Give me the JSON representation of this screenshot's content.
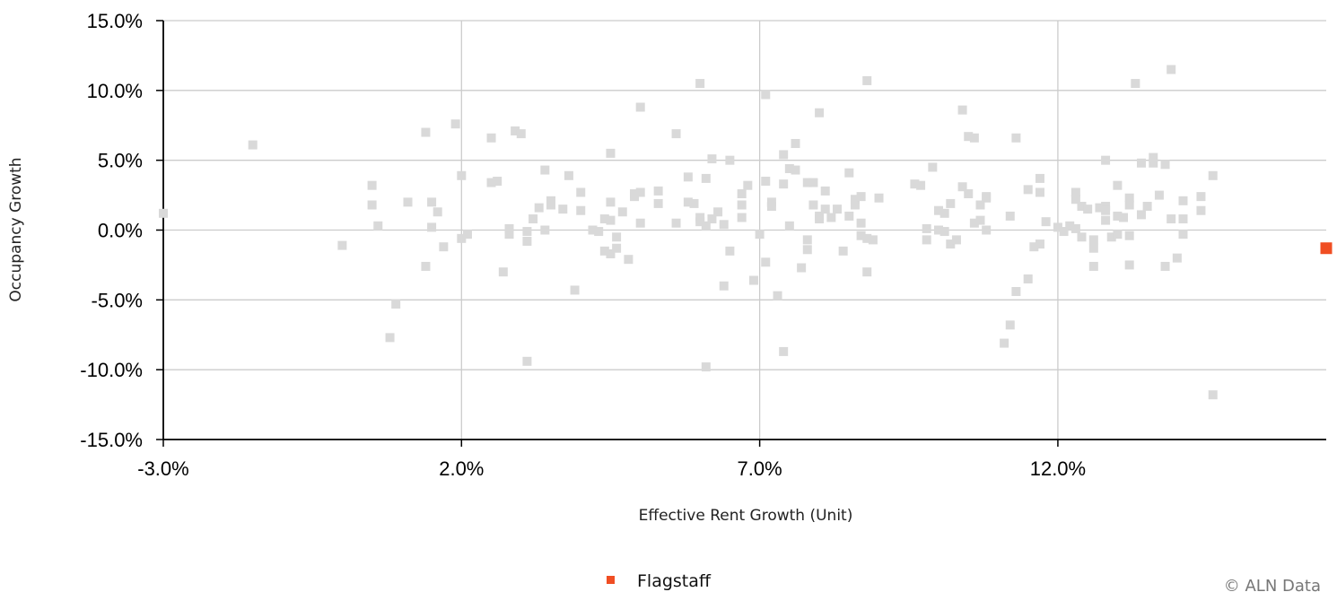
{
  "chart_data": {
    "type": "scatter",
    "xlabel": "Effective Rent Growth (Unit)",
    "ylabel": "Occupancy Growth",
    "xlim": [
      -3.0,
      16.5
    ],
    "ylim": [
      -15.0,
      15.0
    ],
    "x_ticks": [
      -3.0,
      2.0,
      7.0,
      12.0
    ],
    "x_tick_labels": [
      "-3.0%",
      "2.0%",
      "7.0%",
      "12.0%"
    ],
    "y_ticks": [
      15.0,
      10.0,
      5.0,
      0.0,
      -5.0,
      -10.0,
      -15.0
    ],
    "y_tick_labels": [
      "15.0%",
      "10.0%",
      "5.0%",
      "0.0%",
      "-5.0%",
      "-10.0%",
      "-15.0%"
    ],
    "grid": true,
    "legend": {
      "position": "bottom-center",
      "entries": [
        {
          "name": "Flagstaff",
          "color": "#f04e23"
        }
      ]
    },
    "credit": "© ALN Data",
    "colors": {
      "other": "#d9d9d9",
      "highlight": "#f04e23",
      "grid": "#cccccc",
      "axis": "#000000"
    },
    "series": [
      {
        "name": "",
        "color": "#d9d9d9",
        "points": [
          [
            -3.0,
            1.2
          ],
          [
            -1.5,
            6.1
          ],
          [
            0.0,
            -1.1
          ],
          [
            0.5,
            3.2
          ],
          [
            0.5,
            1.8
          ],
          [
            0.6,
            0.3
          ],
          [
            0.8,
            -7.7
          ],
          [
            0.9,
            -5.3
          ],
          [
            1.1,
            2.0
          ],
          [
            1.4,
            7.0
          ],
          [
            1.4,
            -2.6
          ],
          [
            1.5,
            2.0
          ],
          [
            1.5,
            0.2
          ],
          [
            1.6,
            1.3
          ],
          [
            1.7,
            -1.2
          ],
          [
            1.9,
            7.6
          ],
          [
            2.0,
            3.9
          ],
          [
            2.0,
            -0.6
          ],
          [
            2.1,
            -0.3
          ],
          [
            2.5,
            6.6
          ],
          [
            2.5,
            3.4
          ],
          [
            2.6,
            3.5
          ],
          [
            2.7,
            -3.0
          ],
          [
            2.8,
            -0.3
          ],
          [
            2.8,
            0.1
          ],
          [
            2.9,
            7.1
          ],
          [
            3.0,
            6.9
          ],
          [
            3.1,
            -9.4
          ],
          [
            3.1,
            -0.1
          ],
          [
            3.1,
            -0.8
          ],
          [
            3.2,
            0.8
          ],
          [
            3.3,
            1.6
          ],
          [
            3.4,
            4.3
          ],
          [
            3.4,
            0.0
          ],
          [
            3.5,
            1.8
          ],
          [
            3.5,
            2.1
          ],
          [
            3.7,
            1.5
          ],
          [
            3.8,
            3.9
          ],
          [
            3.9,
            -4.3
          ],
          [
            4.0,
            2.7
          ],
          [
            4.0,
            1.4
          ],
          [
            4.2,
            0.0
          ],
          [
            4.3,
            -0.1
          ],
          [
            4.4,
            0.8
          ],
          [
            4.4,
            -1.5
          ],
          [
            4.5,
            0.7
          ],
          [
            4.5,
            5.5
          ],
          [
            4.5,
            2.0
          ],
          [
            4.5,
            -1.7
          ],
          [
            4.6,
            -1.3
          ],
          [
            4.6,
            -0.5
          ],
          [
            4.7,
            1.3
          ],
          [
            4.8,
            -2.1
          ],
          [
            4.9,
            2.4
          ],
          [
            4.9,
            2.6
          ],
          [
            5.0,
            8.8
          ],
          [
            5.0,
            2.7
          ],
          [
            5.0,
            0.5
          ],
          [
            5.3,
            2.8
          ],
          [
            5.3,
            1.9
          ],
          [
            5.6,
            6.9
          ],
          [
            5.6,
            0.5
          ],
          [
            5.8,
            3.8
          ],
          [
            5.8,
            2.0
          ],
          [
            5.9,
            1.9
          ],
          [
            6.0,
            10.5
          ],
          [
            6.0,
            0.9
          ],
          [
            6.0,
            0.6
          ],
          [
            6.1,
            3.7
          ],
          [
            6.1,
            0.3
          ],
          [
            6.1,
            -9.8
          ],
          [
            6.2,
            5.1
          ],
          [
            6.2,
            0.8
          ],
          [
            6.3,
            1.3
          ],
          [
            6.4,
            -4.0
          ],
          [
            6.4,
            0.4
          ],
          [
            6.5,
            5.0
          ],
          [
            6.5,
            -1.5
          ],
          [
            6.7,
            2.6
          ],
          [
            6.7,
            1.8
          ],
          [
            6.7,
            0.9
          ],
          [
            6.8,
            3.2
          ],
          [
            6.9,
            -3.6
          ],
          [
            7.0,
            -0.3
          ],
          [
            7.1,
            9.7
          ],
          [
            7.1,
            3.5
          ],
          [
            7.1,
            -2.3
          ],
          [
            7.2,
            2.0
          ],
          [
            7.2,
            1.7
          ],
          [
            7.3,
            -4.7
          ],
          [
            7.4,
            -8.7
          ],
          [
            7.4,
            5.4
          ],
          [
            7.4,
            3.3
          ],
          [
            7.5,
            4.4
          ],
          [
            7.5,
            0.3
          ],
          [
            7.6,
            6.2
          ],
          [
            7.6,
            4.3
          ],
          [
            7.7,
            -2.7
          ],
          [
            7.8,
            3.4
          ],
          [
            7.8,
            -0.7
          ],
          [
            7.8,
            -1.4
          ],
          [
            7.9,
            3.4
          ],
          [
            7.9,
            1.8
          ],
          [
            8.0,
            8.4
          ],
          [
            8.0,
            1.0
          ],
          [
            8.0,
            0.8
          ],
          [
            8.1,
            2.8
          ],
          [
            8.1,
            1.5
          ],
          [
            8.2,
            0.9
          ],
          [
            8.3,
            1.5
          ],
          [
            8.4,
            -1.5
          ],
          [
            8.5,
            4.1
          ],
          [
            8.5,
            1.0
          ],
          [
            8.6,
            2.2
          ],
          [
            8.6,
            1.8
          ],
          [
            8.7,
            2.4
          ],
          [
            8.7,
            0.5
          ],
          [
            8.7,
            -0.4
          ],
          [
            8.8,
            10.7
          ],
          [
            8.8,
            -3.0
          ],
          [
            8.8,
            -0.6
          ],
          [
            8.9,
            -0.7
          ],
          [
            9.0,
            2.3
          ],
          [
            9.6,
            3.3
          ],
          [
            9.7,
            3.2
          ],
          [
            9.8,
            0.1
          ],
          [
            9.8,
            -0.7
          ],
          [
            9.9,
            4.5
          ],
          [
            10.0,
            1.4
          ],
          [
            10.0,
            0.0
          ],
          [
            10.1,
            1.2
          ],
          [
            10.1,
            -0.1
          ],
          [
            10.2,
            -1.0
          ],
          [
            10.2,
            1.9
          ],
          [
            10.3,
            -0.7
          ],
          [
            10.4,
            8.6
          ],
          [
            10.4,
            3.1
          ],
          [
            10.5,
            2.6
          ],
          [
            10.5,
            6.7
          ],
          [
            10.6,
            6.6
          ],
          [
            10.6,
            0.5
          ],
          [
            10.7,
            1.8
          ],
          [
            10.7,
            0.7
          ],
          [
            10.8,
            2.3
          ],
          [
            10.8,
            2.4
          ],
          [
            10.8,
            0.0
          ],
          [
            11.1,
            -8.1
          ],
          [
            11.2,
            -6.8
          ],
          [
            11.2,
            1.0
          ],
          [
            11.3,
            6.6
          ],
          [
            11.3,
            -4.4
          ],
          [
            11.5,
            -3.5
          ],
          [
            11.5,
            2.9
          ],
          [
            11.6,
            -1.2
          ],
          [
            11.7,
            3.7
          ],
          [
            11.7,
            2.7
          ],
          [
            11.7,
            -1.0
          ],
          [
            11.8,
            0.6
          ],
          [
            12.0,
            0.2
          ],
          [
            12.1,
            -0.1
          ],
          [
            12.2,
            0.3
          ],
          [
            12.3,
            2.7
          ],
          [
            12.3,
            2.2
          ],
          [
            12.3,
            0.1
          ],
          [
            12.4,
            -0.5
          ],
          [
            12.4,
            1.7
          ],
          [
            12.5,
            1.5
          ],
          [
            12.6,
            -2.6
          ],
          [
            12.6,
            -0.7
          ],
          [
            12.6,
            -1.3
          ],
          [
            12.7,
            1.6
          ],
          [
            12.8,
            5.0
          ],
          [
            12.8,
            1.7
          ],
          [
            12.8,
            1.4
          ],
          [
            12.8,
            0.7
          ],
          [
            12.9,
            -0.5
          ],
          [
            13.0,
            3.2
          ],
          [
            13.0,
            1.0
          ],
          [
            13.0,
            -0.3
          ],
          [
            13.1,
            0.9
          ],
          [
            13.2,
            2.3
          ],
          [
            13.2,
            1.8
          ],
          [
            13.2,
            -0.4
          ],
          [
            13.2,
            -2.5
          ],
          [
            13.3,
            10.5
          ],
          [
            13.4,
            1.1
          ],
          [
            13.4,
            4.8
          ],
          [
            13.5,
            1.7
          ],
          [
            13.6,
            5.2
          ],
          [
            13.6,
            4.8
          ],
          [
            13.7,
            2.5
          ],
          [
            13.8,
            4.7
          ],
          [
            13.8,
            -2.6
          ],
          [
            13.9,
            11.5
          ],
          [
            13.9,
            0.8
          ],
          [
            14.0,
            -2.0
          ],
          [
            14.1,
            2.1
          ],
          [
            14.1,
            -0.3
          ],
          [
            14.1,
            0.8
          ],
          [
            14.4,
            2.4
          ],
          [
            14.4,
            1.4
          ],
          [
            14.6,
            3.9
          ],
          [
            14.6,
            -11.8
          ]
        ]
      },
      {
        "name": "Flagstaff",
        "color": "#f04e23",
        "points": [
          [
            16.5,
            -1.3
          ]
        ]
      }
    ]
  }
}
